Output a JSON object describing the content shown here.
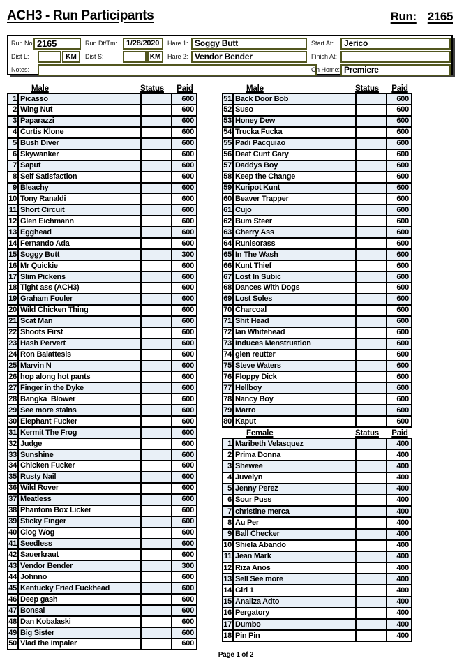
{
  "page": {
    "title": "ACH3 - Run Participants",
    "run_label": "Run:",
    "run_number": "2165",
    "footer": "Page 1 of 2"
  },
  "form": {
    "run_no": {
      "label": "Run No:",
      "value": "2165"
    },
    "run_dt": {
      "label": "Run Dt/Tm:",
      "value": "1/28/2020"
    },
    "dist_l": {
      "label": "Dist L:",
      "value": "",
      "unit": "KM"
    },
    "dist_s": {
      "label": "Dist S:",
      "value": "",
      "unit": "KM"
    },
    "hare1": {
      "label": "Hare 1:",
      "value": "Soggy Butt"
    },
    "hare2": {
      "label": "Hare 2:",
      "value": "Vendor Bender"
    },
    "start_at": {
      "label": "Start At:",
      "value": "Jerico"
    },
    "finish_at": {
      "label": "Finish At:",
      "value": ""
    },
    "on_home": {
      "label": "On Home:",
      "value": "Premiere"
    },
    "notes": {
      "label": "Notes:",
      "value": ""
    }
  },
  "tables": [
    {
      "id": "male-left",
      "gender_label": "Male",
      "status_label": "Status",
      "paid_label": "Paid",
      "rows": [
        [
          "1",
          "Picasso",
          "",
          "600"
        ],
        [
          "2",
          "Wing Nut",
          "",
          "600"
        ],
        [
          "3",
          "Paparazzi",
          "",
          "600"
        ],
        [
          "4",
          "Curtis Klone",
          "",
          "600"
        ],
        [
          "5",
          "Bush Diver",
          "",
          "600"
        ],
        [
          "6",
          "Skywanker",
          "",
          "600"
        ],
        [
          "7",
          "Saput",
          "",
          "600"
        ],
        [
          "8",
          "Self Satisfaction",
          "",
          "600"
        ],
        [
          "9",
          "Bleachy",
          "",
          "600"
        ],
        [
          "10",
          "Tony Ranaldi",
          "",
          "600"
        ],
        [
          "11",
          "Short Circuit",
          "",
          "600"
        ],
        [
          "12",
          "Glen Eichmann",
          "",
          "600"
        ],
        [
          "13",
          "Egghead",
          "",
          "600"
        ],
        [
          "14",
          "Fernando Ada",
          "",
          "600"
        ],
        [
          "15",
          "Soggy Butt",
          "",
          "300"
        ],
        [
          "16",
          "Mr Quickie",
          "",
          "600"
        ],
        [
          "17",
          "Slim Pickens",
          "",
          "600"
        ],
        [
          "18",
          "Tight ass (ACH3)",
          "",
          "600"
        ],
        [
          "19",
          "Graham Fouler",
          "",
          "600"
        ],
        [
          "20",
          "Wild Chicken Thing",
          "",
          "600"
        ],
        [
          "21",
          "Scat Man",
          "",
          "600"
        ],
        [
          "22",
          "Shoots First",
          "",
          "600"
        ],
        [
          "23",
          "Hash Pervert",
          "",
          "600"
        ],
        [
          "24",
          "Ron Balattesis",
          "",
          "600"
        ],
        [
          "25",
          "Marvin N",
          "",
          "600"
        ],
        [
          "26",
          "hop along hot pants",
          "",
          "600"
        ],
        [
          "27",
          "Finger in the Dyke",
          "",
          "600"
        ],
        [
          "28",
          "Bangka  Blower",
          "",
          "600"
        ],
        [
          "29",
          "See more stains",
          "",
          "600"
        ],
        [
          "30",
          "Elephant Fucker",
          "",
          "600"
        ],
        [
          "31",
          "Kermit The Frog",
          "",
          "600"
        ],
        [
          "32",
          "Judge",
          "",
          "600"
        ],
        [
          "33",
          "Sunshine",
          "",
          "600"
        ],
        [
          "34",
          "Chicken Fucker",
          "",
          "600"
        ],
        [
          "35",
          "Rusty Nail",
          "",
          "600"
        ],
        [
          "36",
          "Wild Rover",
          "",
          "600"
        ],
        [
          "37",
          "Meatless",
          "",
          "600"
        ],
        [
          "38",
          "Phantom Box Licker",
          "",
          "600"
        ],
        [
          "39",
          "Sticky Finger",
          "",
          "600"
        ],
        [
          "40",
          "Clog Wog",
          "",
          "600"
        ],
        [
          "41",
          "Seedless",
          "",
          "600"
        ],
        [
          "42",
          "Sauerkraut",
          "",
          "600"
        ],
        [
          "43",
          "Vendor Bender",
          "",
          "300"
        ],
        [
          "44",
          "Johnno",
          "",
          "600"
        ],
        [
          "45",
          "Kentucky Fried Fuckhead",
          "",
          "600"
        ],
        [
          "46",
          "Deep gash",
          "",
          "600"
        ],
        [
          "47",
          "Bonsai",
          "",
          "600"
        ],
        [
          "48",
          "Dan Kobalaski",
          "",
          "600"
        ],
        [
          "49",
          "Big Sister",
          "",
          "600"
        ],
        [
          "50",
          "Vlad the Impaler",
          "",
          "600"
        ]
      ]
    },
    {
      "id": "male-right",
      "gender_label": "Male",
      "status_label": "Status",
      "paid_label": "Paid",
      "rows": [
        [
          "51",
          "Back Door Bob",
          "",
          "600"
        ],
        [
          "52",
          "Suso",
          "",
          "600"
        ],
        [
          "53",
          "Honey Dew",
          "",
          "600"
        ],
        [
          "54",
          "Trucka Fucka",
          "",
          "600"
        ],
        [
          "55",
          "Padi Pacquiao",
          "",
          "600"
        ],
        [
          "56",
          "Deaf Cunt Gary",
          "",
          "600"
        ],
        [
          "57",
          "Daddys Boy",
          "",
          "600"
        ],
        [
          "58",
          "Keep the Change",
          "",
          "600"
        ],
        [
          "59",
          "Kuripot Kunt",
          "",
          "600"
        ],
        [
          "60",
          "Beaver Trapper",
          "",
          "600"
        ],
        [
          "61",
          "Cujo",
          "",
          "600"
        ],
        [
          "62",
          "Bum Steer",
          "",
          "600"
        ],
        [
          "63",
          "Cherry Ass",
          "",
          "600"
        ],
        [
          "64",
          "Runisorass",
          "",
          "600"
        ],
        [
          "65",
          "In The Wash",
          "",
          "600"
        ],
        [
          "66",
          "Kunt Thief",
          "",
          "600"
        ],
        [
          "67",
          "Lost In Subic",
          "",
          "600"
        ],
        [
          "68",
          "Dances With Dogs",
          "",
          "600"
        ],
        [
          "69",
          "Lost Soles",
          "",
          "600"
        ],
        [
          "70",
          "Charcoal",
          "",
          "600"
        ],
        [
          "71",
          "Shit Head",
          "",
          "600"
        ],
        [
          "72",
          "Ian Whitehead",
          "",
          "600"
        ],
        [
          "73",
          "Induces Menstruation",
          "",
          "600"
        ],
        [
          "74",
          "glen reutter",
          "",
          "600"
        ],
        [
          "75",
          "Steve Waters",
          "",
          "600"
        ],
        [
          "76",
          "Floppy Dick",
          "",
          "600"
        ],
        [
          "77",
          "Hellboy",
          "",
          "600"
        ],
        [
          "78",
          "Nancy Boy",
          "",
          "600"
        ],
        [
          "79",
          "Marro",
          "",
          "600"
        ],
        [
          "80",
          "Kaput",
          "",
          "600"
        ]
      ]
    },
    {
      "id": "female",
      "gender_label": "Female",
      "status_label": "Status",
      "paid_label": "Paid",
      "rows": [
        [
          "1",
          "Maribeth Velasquez",
          "",
          "400"
        ],
        [
          "2",
          "Prima Donna",
          "",
          "400"
        ],
        [
          "3",
          "Shewee",
          "",
          "400"
        ],
        [
          "4",
          "Juvelyn",
          "",
          "400"
        ],
        [
          "5",
          "Jenny Perez",
          "",
          "400"
        ],
        [
          "6",
          "Sour Puss",
          "",
          "400"
        ],
        [
          "7",
          "christine merca",
          "",
          "400"
        ],
        [
          "8",
          "Au Per",
          "",
          "400"
        ],
        [
          "9",
          "Ball Checker",
          "",
          "400"
        ],
        [
          "10",
          "Shiela Abando",
          "",
          "400"
        ],
        [
          "11",
          "Jean Mark",
          "",
          "400"
        ],
        [
          "12",
          "Riza Anos",
          "",
          "400"
        ],
        [
          "13",
          "Sell See more",
          "",
          "400"
        ],
        [
          "14",
          "Girl 1",
          "",
          "400"
        ],
        [
          "15",
          "Analiza Adto",
          "",
          "400"
        ],
        [
          "16",
          "Pergatory",
          "",
          "400"
        ],
        [
          "17",
          "Dumbo",
          "",
          "400"
        ],
        [
          "18",
          "Pin Pin",
          "",
          "400"
        ]
      ]
    }
  ]
}
